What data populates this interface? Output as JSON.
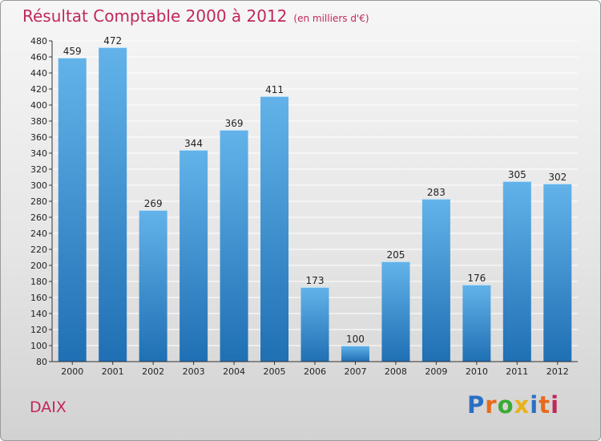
{
  "title": {
    "main": "Résultat Comptable 2000 à 2012",
    "sub": "(en milliers d'€)"
  },
  "place_label": "DAIX",
  "logo": {
    "text": "Proxiti",
    "letter_colors": [
      "#2a6fc4",
      "#e86a1b",
      "#3aaa35",
      "#e8b21b",
      "#2a6fc4",
      "#e86a1b",
      "#c0285a"
    ]
  },
  "colors": {
    "title": "#c0285a",
    "bar_top": "#63b3ea",
    "bar_bottom": "#1f6fb4"
  },
  "chart_data": {
    "type": "bar",
    "title": "Résultat Comptable 2000 à 2012",
    "subtitle": "(en milliers d'€)",
    "categories": [
      "2000",
      "2001",
      "2002",
      "2003",
      "2004",
      "2005",
      "2006",
      "2007",
      "2008",
      "2009",
      "2010",
      "2011",
      "2012"
    ],
    "values": [
      459,
      472,
      269,
      344,
      369,
      411,
      173,
      100,
      205,
      283,
      176,
      305,
      302
    ],
    "ylim": [
      80,
      480
    ],
    "yticks": [
      80,
      100,
      120,
      140,
      160,
      180,
      200,
      220,
      240,
      260,
      280,
      300,
      320,
      340,
      360,
      380,
      400,
      420,
      440,
      460,
      480
    ],
    "grid": true,
    "data_labels": true
  }
}
